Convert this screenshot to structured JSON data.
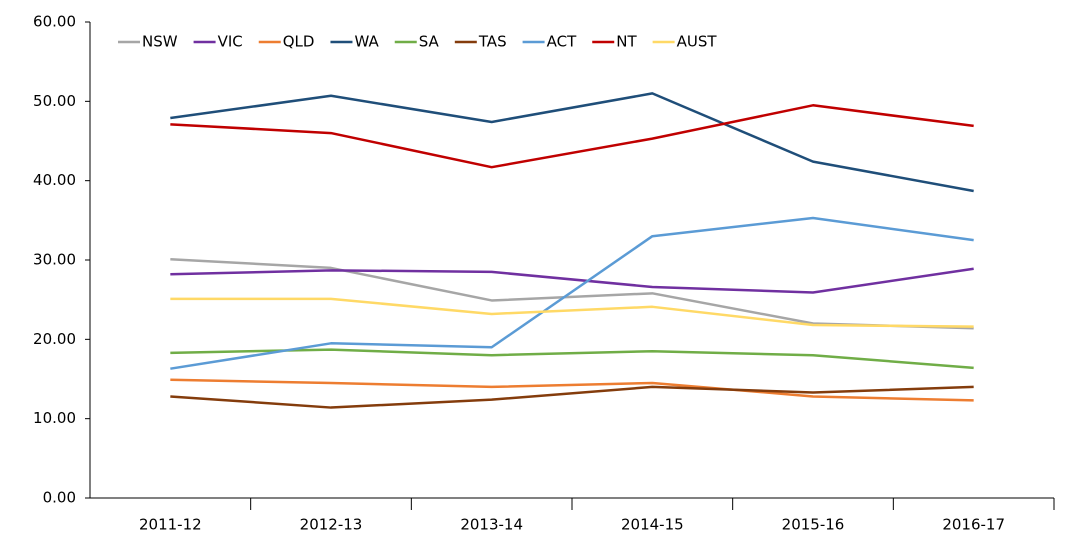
{
  "chart_data": {
    "type": "line",
    "categories": [
      "2011-12",
      "2012-13",
      "2013-14",
      "2014-15",
      "2015-16",
      "2016-17"
    ],
    "series": [
      {
        "name": "NSW",
        "color": "#a6a6a6",
        "values": [
          30.1,
          29.0,
          24.9,
          25.8,
          22.0,
          21.4
        ]
      },
      {
        "name": "VIC",
        "color": "#7030a0",
        "values": [
          28.2,
          28.7,
          28.5,
          26.6,
          25.9,
          28.9
        ]
      },
      {
        "name": "QLD",
        "color": "#ed7d31",
        "values": [
          14.9,
          14.5,
          14.0,
          14.5,
          12.8,
          12.3
        ]
      },
      {
        "name": "WA",
        "color": "#1f4e79",
        "values": [
          47.9,
          50.7,
          47.4,
          51.0,
          42.4,
          38.7
        ]
      },
      {
        "name": "SA",
        "color": "#70ad47",
        "values": [
          18.3,
          18.7,
          18.0,
          18.5,
          18.0,
          16.4
        ]
      },
      {
        "name": "TAS",
        "color": "#843c0c",
        "values": [
          12.8,
          11.4,
          12.4,
          14.0,
          13.3,
          14.0
        ]
      },
      {
        "name": "ACT",
        "color": "#5b9bd5",
        "values": [
          16.3,
          19.5,
          19.0,
          33.0,
          35.3,
          32.5
        ]
      },
      {
        "name": "NT",
        "color": "#c00000",
        "values": [
          47.1,
          46.0,
          41.7,
          45.3,
          49.5,
          46.9
        ]
      },
      {
        "name": "AUST",
        "color": "#ffd966",
        "values": [
          25.1,
          25.1,
          23.2,
          24.1,
          21.8,
          21.6
        ]
      }
    ],
    "ylim": [
      0,
      60
    ],
    "yticks": [
      {
        "value": 0,
        "label": "0.00"
      },
      {
        "value": 10,
        "label": "10.00"
      },
      {
        "value": 20,
        "label": "20.00"
      },
      {
        "value": 30,
        "label": "30.00"
      },
      {
        "value": 40,
        "label": "40.00"
      },
      {
        "value": 50,
        "label": "50.00"
      },
      {
        "value": 60,
        "label": "60.00"
      }
    ]
  }
}
